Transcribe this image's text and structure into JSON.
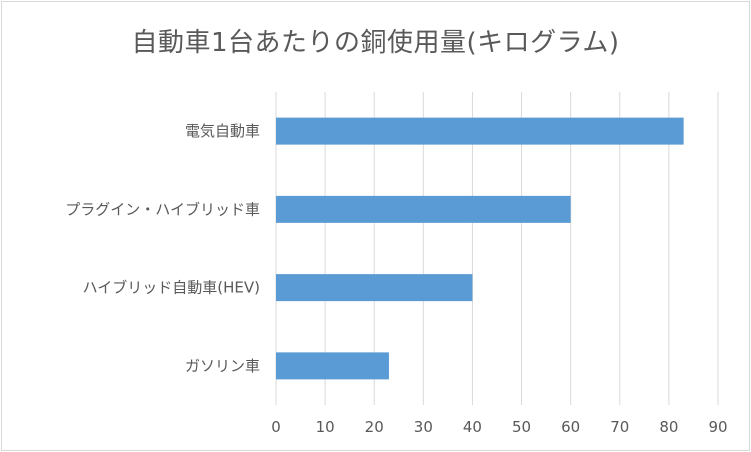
{
  "chart_data": {
    "type": "bar",
    "orientation": "horizontal",
    "title": "自動車1台あたりの銅使用量(キログラム)",
    "categories": [
      "電気自動車",
      "プラグイン・ハイブリッド車",
      "ハイブリッド自動車(HEV)",
      "ガソリン車"
    ],
    "values": [
      83,
      60,
      40,
      23
    ],
    "xlabel": "",
    "ylabel": "",
    "xlim": [
      0,
      90
    ],
    "xticks": [
      0,
      10,
      20,
      30,
      40,
      50,
      60,
      70,
      80,
      90
    ],
    "grid": true,
    "legend": "none",
    "bar_color": "#5b9bd5",
    "grid_color": "#d9d9d9"
  }
}
